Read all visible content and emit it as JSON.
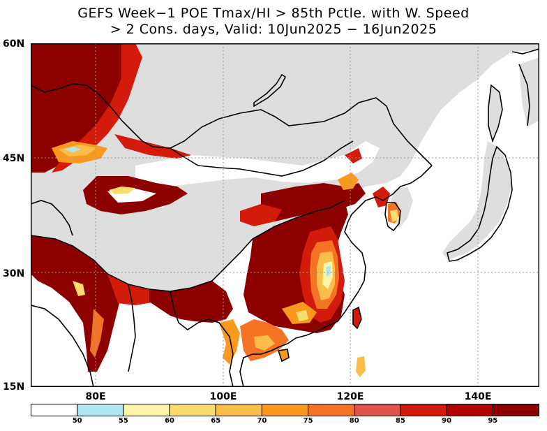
{
  "title": {
    "line1": "GEFS Week−1 POE Tmax/HI > 85th Pctle. with W. Speed",
    "line2": "> 2 Cons. days, Valid: 10Jun2025 − 16Jun2025"
  },
  "axes": {
    "lat_labels": [
      "60N",
      "45N",
      "30N",
      "15N"
    ],
    "lon_labels": [
      "80E",
      "100E",
      "120E",
      "140E"
    ]
  },
  "legend": {
    "labels": [
      "50",
      "55",
      "60",
      "65",
      "70",
      "75",
      "80",
      "85",
      "90",
      "95"
    ],
    "colors": [
      "#ffffff",
      "#aee8f4",
      "#fcf5a8",
      "#fbdc6e",
      "#fbbd4a",
      "#f99a1e",
      "#f47324",
      "#e0554a",
      "#d21b0a",
      "#b00000",
      "#8c0000"
    ]
  },
  "map_colors": {
    "land_nodata": "#dedede",
    "ocean": "#ffffff",
    "grid": "#999999"
  }
}
